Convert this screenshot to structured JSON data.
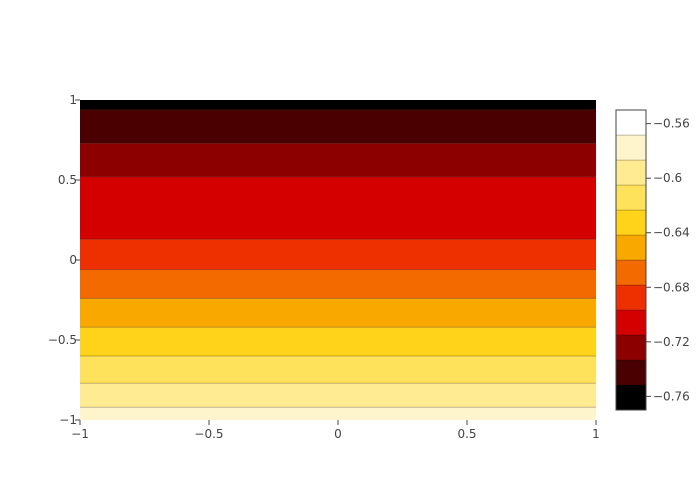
{
  "chart_data": {
    "type": "heatmap",
    "title": "",
    "xlabel": "",
    "ylabel": "",
    "xlim": [
      -1,
      1
    ],
    "ylim": [
      -1,
      1
    ],
    "x_ticks": [
      "−1",
      "−0.5",
      "0",
      "0.5",
      "1"
    ],
    "y_ticks": [
      "−1",
      "−0.5",
      "0",
      "0.5",
      "1"
    ],
    "x_tick_values": [
      -1,
      -0.5,
      0,
      0.5,
      1
    ],
    "y_tick_values": [
      -1,
      -0.5,
      0,
      0.5,
      1
    ],
    "contour_bands": [
      {
        "y_from": -1.0,
        "y_to": -0.92,
        "color": "#fff5cc"
      },
      {
        "y_from": -0.92,
        "y_to": -0.77,
        "color": "#ffeb92"
      },
      {
        "y_from": -0.77,
        "y_to": -0.6,
        "color": "#ffe25c"
      },
      {
        "y_from": -0.6,
        "y_to": -0.42,
        "color": "#ffd319"
      },
      {
        "y_from": -0.42,
        "y_to": -0.24,
        "color": "#f9a800"
      },
      {
        "y_from": -0.24,
        "y_to": -0.06,
        "color": "#f26a00"
      },
      {
        "y_from": -0.06,
        "y_to": 0.13,
        "color": "#ee2f00"
      },
      {
        "y_from": 0.13,
        "y_to": 0.52,
        "color": "#d40000"
      },
      {
        "y_from": 0.52,
        "y_to": 0.73,
        "color": "#8c0000"
      },
      {
        "y_from": 0.73,
        "y_to": 0.94,
        "color": "#4a0000"
      },
      {
        "y_from": 0.94,
        "y_to": 1.0,
        "color": "#000000"
      }
    ],
    "contour_levels": [
      -0.92,
      -0.77,
      -0.6,
      -0.42,
      -0.24,
      -0.06,
      0.13,
      0.52,
      0.73,
      0.94
    ],
    "colorbar": {
      "range": [
        -0.77,
        -0.55
      ],
      "tick_labels": [
        "−0.56",
        "−0.6",
        "−0.64",
        "−0.68",
        "−0.72",
        "−0.76"
      ],
      "tick_values": [
        -0.56,
        -0.6,
        -0.64,
        -0.68,
        -0.72,
        -0.76
      ],
      "colors": [
        "#000000",
        "#4a0000",
        "#8c0000",
        "#d40000",
        "#ee2f00",
        "#f26a00",
        "#f9a800",
        "#ffd319",
        "#ffe25c",
        "#ffeb92",
        "#fff5cc",
        "#ffffff"
      ]
    }
  }
}
